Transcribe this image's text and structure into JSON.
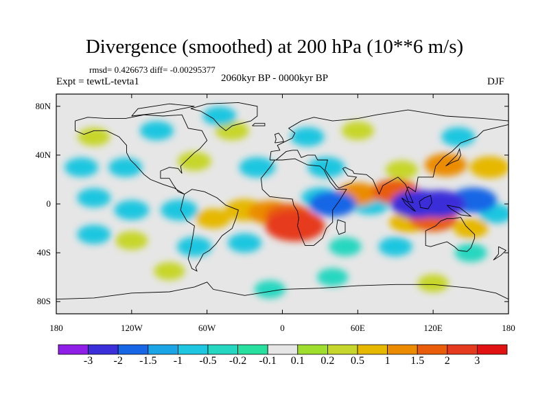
{
  "header": {
    "title": "Divergence (smoothed) at 200 hPa (10**6 m/s)",
    "stats": "rmsd= 0.426673  diff= -0.00295377",
    "experiment": "Expt = tewtL-tevta1",
    "period": "2060kyr BP - 0000kyr BP",
    "season": "DJF"
  },
  "chart_data": {
    "type": "heatmap",
    "title": "Divergence (smoothed) at 200 hPa (10**6 m/s)",
    "xlim": [
      -180,
      180
    ],
    "ylim": [
      -90,
      90
    ],
    "x_ticks": [
      {
        "value": -180,
        "label": "180"
      },
      {
        "value": -120,
        "label": "120W"
      },
      {
        "value": -60,
        "label": "60W"
      },
      {
        "value": 0,
        "label": "0"
      },
      {
        "value": 60,
        "label": "60E"
      },
      {
        "value": 120,
        "label": "120E"
      },
      {
        "value": 180,
        "label": "180"
      }
    ],
    "y_ticks": [
      {
        "value": 80,
        "label": "80N"
      },
      {
        "value": 40,
        "label": "40N"
      },
      {
        "value": 0,
        "label": "0"
      },
      {
        "value": -40,
        "label": "40S"
      },
      {
        "value": -80,
        "label": "80S"
      }
    ],
    "colorbar": {
      "labels": [
        "-3",
        "-2",
        "-1.5",
        "-1",
        "-0.5",
        "-0.2",
        "-0.1",
        "0.1",
        "0.2",
        "0.5",
        "1",
        "1.5",
        "2",
        "3"
      ],
      "colors": [
        "#8f1ee6",
        "#3b2fd9",
        "#1766e6",
        "#1aa6e6",
        "#1fc6e0",
        "#25d7c0",
        "#27e0a0",
        "#e6e6e6",
        "#a0de2e",
        "#c7d62c",
        "#e6b800",
        "#eb8c00",
        "#e85c0a",
        "#e63a1e",
        "#e01212"
      ]
    },
    "fields": [
      {
        "lon": -10,
        "lat": -7,
        "value": 1.3
      },
      {
        "lon": 10,
        "lat": -18,
        "value": 2.6
      },
      {
        "lon": 5,
        "lat": -10,
        "value": 1.6
      },
      {
        "lon": -30,
        "lat": -5,
        "value": 1.0
      },
      {
        "lon": -55,
        "lat": -12,
        "value": 0.6
      },
      {
        "lon": -82,
        "lat": -5,
        "value": -0.8
      },
      {
        "lon": -120,
        "lat": -5,
        "value": -0.6
      },
      {
        "lon": -150,
        "lat": 5,
        "value": -0.5
      },
      {
        "lon": 40,
        "lat": 0,
        "value": -1.6
      },
      {
        "lon": 30,
        "lat": 5,
        "value": -0.8
      },
      {
        "lon": 70,
        "lat": 0,
        "value": -0.9
      },
      {
        "lon": 60,
        "lat": 8,
        "value": 1.2
      },
      {
        "lon": 90,
        "lat": 10,
        "value": 1.6
      },
      {
        "lon": 108,
        "lat": 0,
        "value": -2.2
      },
      {
        "lon": 125,
        "lat": 0,
        "value": -2.0
      },
      {
        "lon": 152,
        "lat": 3,
        "value": -1.6
      },
      {
        "lon": 120,
        "lat": -12,
        "value": 1.7
      },
      {
        "lon": 100,
        "lat": -15,
        "value": 0.8
      },
      {
        "lon": 150,
        "lat": -20,
        "value": 0.6
      },
      {
        "lon": 170,
        "lat": -8,
        "value": -0.5
      },
      {
        "lon": 130,
        "lat": 32,
        "value": 1.2
      },
      {
        "lon": 165,
        "lat": 30,
        "value": 1.0
      },
      {
        "lon": 95,
        "lat": 28,
        "value": 0.4
      },
      {
        "lon": 35,
        "lat": 30,
        "value": -0.8
      },
      {
        "lon": -20,
        "lat": 30,
        "value": -0.7
      },
      {
        "lon": -70,
        "lat": 35,
        "value": 0.5
      },
      {
        "lon": -125,
        "lat": 30,
        "value": -0.5
      },
      {
        "lon": -160,
        "lat": 30,
        "value": -0.5
      },
      {
        "lon": -150,
        "lat": 55,
        "value": 0.4
      },
      {
        "lon": -100,
        "lat": 60,
        "value": -0.5
      },
      {
        "lon": -40,
        "lat": 60,
        "value": 0.5
      },
      {
        "lon": 20,
        "lat": 55,
        "value": -0.5
      },
      {
        "lon": 60,
        "lat": 60,
        "value": 0.4
      },
      {
        "lon": 140,
        "lat": 55,
        "value": -0.5
      },
      {
        "lon": -50,
        "lat": 72,
        "value": -0.5
      },
      {
        "lon": -150,
        "lat": -25,
        "value": -0.5
      },
      {
        "lon": -120,
        "lat": -30,
        "value": 0.4
      },
      {
        "lon": -70,
        "lat": -35,
        "value": -0.6
      },
      {
        "lon": -30,
        "lat": -32,
        "value": -0.5
      },
      {
        "lon": 50,
        "lat": -35,
        "value": -0.4
      },
      {
        "lon": 90,
        "lat": -35,
        "value": -0.5
      },
      {
        "lon": 150,
        "lat": -40,
        "value": -0.4
      },
      {
        "lon": -90,
        "lat": -55,
        "value": 0.3
      },
      {
        "lon": 40,
        "lat": -60,
        "value": -0.3
      },
      {
        "lon": -10,
        "lat": -70,
        "value": -0.3
      },
      {
        "lon": 120,
        "lat": -65,
        "value": 0.3
      }
    ]
  }
}
